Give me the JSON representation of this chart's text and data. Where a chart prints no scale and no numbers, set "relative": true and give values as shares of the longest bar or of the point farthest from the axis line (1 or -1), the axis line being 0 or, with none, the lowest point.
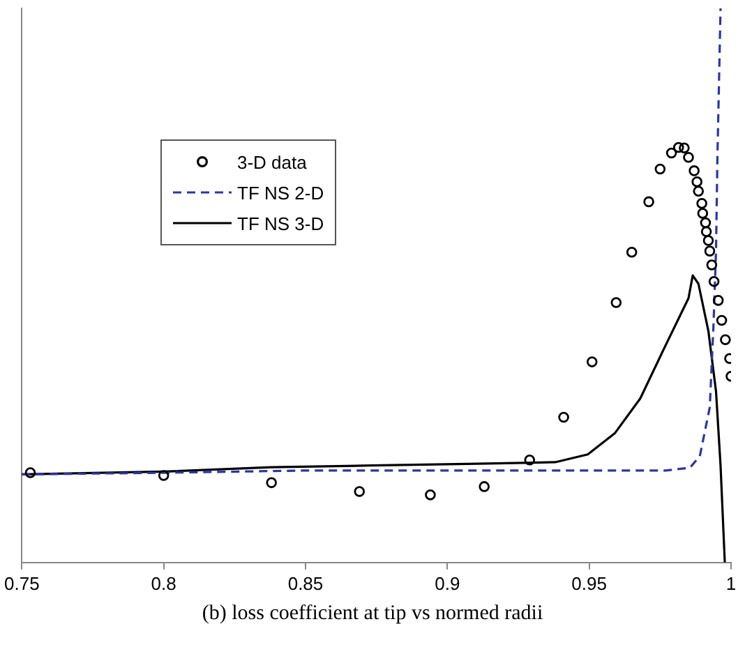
{
  "chart_data": {
    "type": "line",
    "relative": true,
    "xlim": [
      0.75,
      1
    ],
    "xticks": [
      0.75,
      0.8,
      0.85,
      0.9,
      0.95,
      1
    ],
    "grid": false,
    "legend": "top left",
    "annotations": [
      "(b) loss coefficient at tip vs normed radii"
    ],
    "series": [
      {
        "name": "3-D data",
        "type": "scatter",
        "marker": "circle",
        "color": "#000000",
        "x": [
          0.753,
          0.8,
          0.838,
          0.869,
          0.894,
          0.913,
          0.929,
          0.941,
          0.951,
          0.9595,
          0.965,
          0.971,
          0.975,
          0.979,
          0.9815,
          0.9835,
          0.985,
          0.987,
          0.988,
          0.9885,
          0.9897,
          0.99,
          0.991,
          0.9913,
          0.992,
          0.9925,
          0.9932,
          0.994,
          0.9955,
          0.9967,
          0.998,
          0.9995,
          1.0
        ],
        "values": [
          0.162,
          0.157,
          0.144,
          0.128,
          0.122,
          0.137,
          0.185,
          0.262,
          0.362,
          0.469,
          0.56,
          0.651,
          0.71,
          0.739,
          0.749,
          0.748,
          0.731,
          0.707,
          0.687,
          0.67,
          0.648,
          0.63,
          0.613,
          0.597,
          0.581,
          0.562,
          0.537,
          0.507,
          0.473,
          0.437,
          0.402,
          0.368,
          0.336
        ]
      },
      {
        "name": "TF NS 2-D",
        "line_style": "dashed",
        "marker": "none",
        "color": "#2a36a8",
        "x": [
          0.75,
          0.8,
          0.85,
          0.9,
          0.95,
          0.977,
          0.9855,
          0.989,
          0.9925,
          0.9938,
          0.9947,
          0.9952,
          0.9963
        ],
        "values": [
          0.159,
          0.162,
          0.166,
          0.166,
          0.166,
          0.166,
          0.171,
          0.192,
          0.28,
          0.427,
          0.562,
          0.732,
          1
        ]
      },
      {
        "name": "TF NS 3-D",
        "line_style": "solid",
        "marker": "none",
        "color": "#000000",
        "x": [
          0.75,
          0.8,
          0.838,
          0.873,
          0.907,
          0.938,
          0.9495,
          0.959,
          0.968,
          0.976,
          0.985,
          0.9865,
          0.9885,
          0.992,
          0.9947,
          0.9963,
          0.9978
        ],
        "values": [
          0.159,
          0.164,
          0.172,
          0.175,
          0.178,
          0.181,
          0.195,
          0.233,
          0.296,
          0.382,
          0.477,
          0.518,
          0.503,
          0.418,
          0.309,
          0.175,
          0
        ]
      }
    ]
  }
}
